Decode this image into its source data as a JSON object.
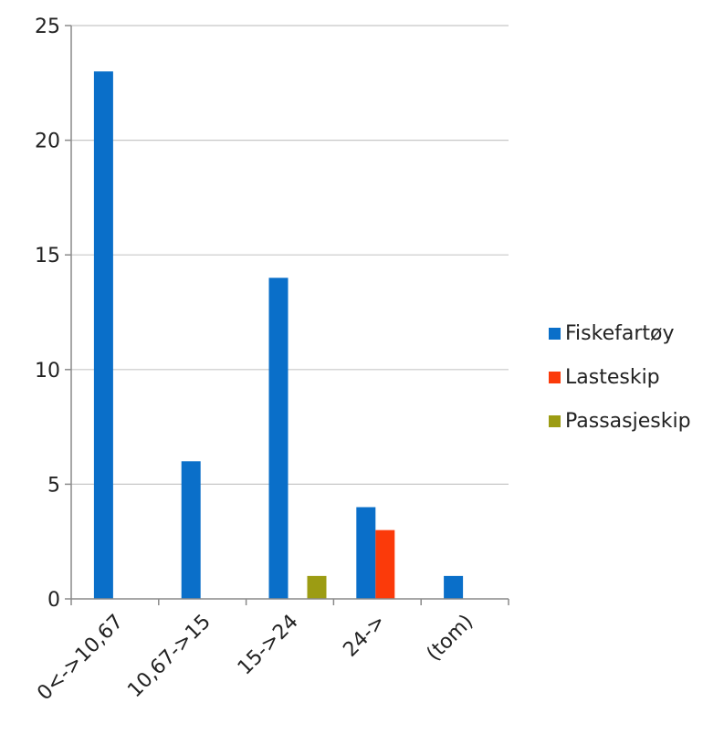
{
  "chart_data": {
    "type": "bar",
    "title": "",
    "xlabel": "",
    "ylabel": "",
    "categories": [
      "0<->10,67",
      "10,67->15",
      "15->24",
      "24->",
      "(tom)"
    ],
    "series": [
      {
        "name": "Fiskefartøy",
        "color": "#0a6fc9",
        "values": [
          23,
          6,
          14,
          4,
          1
        ]
      },
      {
        "name": "Lasteskip",
        "color": "#fb3a0a",
        "values": [
          0,
          0,
          0,
          3,
          0
        ]
      },
      {
        "name": "Passasjeskip",
        "color": "#9c9c13",
        "values": [
          0,
          0,
          1,
          0,
          0
        ]
      }
    ],
    "ylim": [
      0,
      25
    ],
    "yticks": [
      0,
      5,
      10,
      15,
      20,
      25
    ],
    "grid": true,
    "legend": "right"
  }
}
